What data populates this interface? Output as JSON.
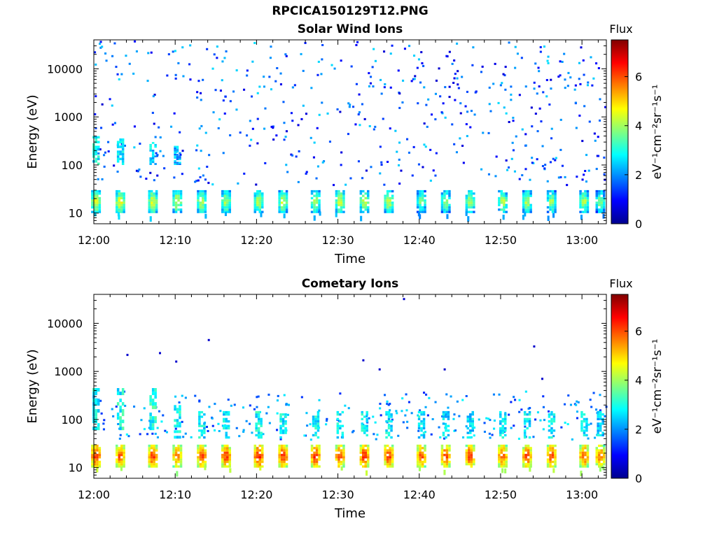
{
  "figure_title": "RPCICA150129T12.PNG",
  "chart_data": [
    {
      "type": "heatmap",
      "title": "Solar Wind Ions",
      "xlabel": "Time",
      "ylabel": "Energy (eV)",
      "x_ticks": [
        "12:00",
        "12:10",
        "12:20",
        "12:30",
        "12:40",
        "12:50",
        "13:00"
      ],
      "xlim": [
        "12:00",
        "13:03"
      ],
      "y_scale": "log",
      "y_ticks": [
        10,
        100,
        1000,
        10000
      ],
      "ylim": [
        6,
        40000
      ],
      "colorbar": {
        "title": "Flux",
        "label": "eV⁻¹cm⁻²sr⁻¹s⁻¹",
        "ticks": [
          0,
          2,
          4,
          6
        ],
        "range": [
          0,
          7.5
        ],
        "colormap": "jet"
      },
      "bursts": [
        {
          "time": "12:00",
          "low_band_energy": [
            10,
            30
          ],
          "low_band_flux": 4.5,
          "mid_band_energy": [
            100,
            400
          ],
          "mid_band_flux": 2.8
        },
        {
          "time": "12:03",
          "low_band_energy": [
            10,
            30
          ],
          "low_band_flux": 4.6,
          "mid_band_energy": [
            100,
            400
          ],
          "mid_band_flux": 2.6
        },
        {
          "time": "12:07",
          "low_band_energy": [
            10,
            30
          ],
          "low_band_flux": 4.5,
          "mid_band_energy": [
            100,
            300
          ],
          "mid_band_flux": 2.5
        },
        {
          "time": "12:10",
          "low_band_energy": [
            10,
            30
          ],
          "low_band_flux": 4.4,
          "mid_band_energy": [
            100,
            250
          ],
          "mid_band_flux": 2.2
        },
        {
          "time": "12:13",
          "low_band_energy": [
            10,
            30
          ],
          "low_band_flux": 4.3
        },
        {
          "time": "12:16",
          "low_band_energy": [
            10,
            30
          ],
          "low_band_flux": 4.2
        },
        {
          "time": "12:20",
          "low_band_energy": [
            10,
            30
          ],
          "low_band_flux": 4.2
        },
        {
          "time": "12:23",
          "low_band_energy": [
            10,
            30
          ],
          "low_band_flux": 4.3
        },
        {
          "time": "12:27",
          "low_band_energy": [
            10,
            30
          ],
          "low_band_flux": 4.2
        },
        {
          "time": "12:30",
          "low_band_energy": [
            10,
            30
          ],
          "low_band_flux": 4.4
        },
        {
          "time": "12:33",
          "low_band_energy": [
            10,
            30
          ],
          "low_band_flux": 4.2
        },
        {
          "time": "12:36",
          "low_band_energy": [
            10,
            30
          ],
          "low_band_flux": 4.3
        },
        {
          "time": "12:40",
          "low_band_energy": [
            10,
            30
          ],
          "low_band_flux": 3.9
        },
        {
          "time": "12:43",
          "low_band_energy": [
            10,
            30
          ],
          "low_band_flux": 4.0
        },
        {
          "time": "12:46",
          "low_band_energy": [
            10,
            30
          ],
          "low_band_flux": 4.1
        },
        {
          "time": "12:50",
          "low_band_energy": [
            10,
            30
          ],
          "low_band_flux": 4.2
        },
        {
          "time": "12:53",
          "low_band_energy": [
            10,
            30
          ],
          "low_band_flux": 4.2
        },
        {
          "time": "12:56",
          "low_band_energy": [
            10,
            30
          ],
          "low_band_flux": 4.0
        },
        {
          "time": "13:00",
          "low_band_energy": [
            10,
            30
          ],
          "low_band_flux": 4.1
        },
        {
          "time": "13:02",
          "low_band_energy": [
            10,
            30
          ],
          "low_band_flux": 3.8
        }
      ],
      "background": {
        "energy_range": [
          40,
          40000
        ],
        "flux_range": [
          0.6,
          2.6
        ],
        "description": "scattered sparse pixels"
      }
    },
    {
      "type": "heatmap",
      "title": "Cometary Ions",
      "xlabel": "Time",
      "ylabel": "Energy (eV)",
      "x_ticks": [
        "12:00",
        "12:10",
        "12:20",
        "12:30",
        "12:40",
        "12:50",
        "13:00"
      ],
      "xlim": [
        "12:00",
        "13:03"
      ],
      "y_scale": "log",
      "y_ticks": [
        10,
        100,
        1000,
        10000
      ],
      "ylim": [
        6,
        40000
      ],
      "colorbar": {
        "title": "Flux",
        "label": "eV⁻¹cm⁻²sr⁻¹s⁻¹",
        "ticks": [
          0,
          2,
          4,
          6
        ],
        "range": [
          0,
          7.5
        ],
        "colormap": "jet"
      },
      "bursts": [
        {
          "time": "12:00",
          "low_band_energy": [
            10,
            30
          ],
          "low_band_flux": 6.3,
          "mid_band_energy": [
            60,
            450
          ],
          "mid_band_flux": 2.8
        },
        {
          "time": "12:03",
          "low_band_energy": [
            10,
            30
          ],
          "low_band_flux": 6.0,
          "mid_band_energy": [
            60,
            450
          ],
          "mid_band_flux": 2.9
        },
        {
          "time": "12:07",
          "low_band_energy": [
            10,
            30
          ],
          "low_band_flux": 6.2,
          "mid_band_energy": [
            60,
            450
          ],
          "mid_band_flux": 3.0
        },
        {
          "time": "12:10",
          "low_band_energy": [
            10,
            30
          ],
          "low_band_flux": 5.8,
          "mid_band_energy": [
            40,
            200
          ],
          "mid_band_flux": 2.8
        },
        {
          "time": "12:13",
          "low_band_energy": [
            10,
            30
          ],
          "low_band_flux": 6.1,
          "mid_band_energy": [
            40,
            150
          ],
          "mid_band_flux": 2.7
        },
        {
          "time": "12:16",
          "low_band_energy": [
            10,
            30
          ],
          "low_band_flux": 6.2,
          "mid_band_energy": [
            40,
            150
          ],
          "mid_band_flux": 2.7
        },
        {
          "time": "12:20",
          "low_band_energy": [
            10,
            30
          ],
          "low_band_flux": 6.4,
          "mid_band_energy": [
            40,
            150
          ],
          "mid_band_flux": 2.8
        },
        {
          "time": "12:23",
          "low_band_energy": [
            10,
            30
          ],
          "low_band_flux": 6.2,
          "mid_band_energy": [
            40,
            150
          ],
          "mid_band_flux": 2.7
        },
        {
          "time": "12:27",
          "low_band_energy": [
            10,
            30
          ],
          "low_band_flux": 6.3,
          "mid_band_energy": [
            40,
            150
          ],
          "mid_band_flux": 2.8
        },
        {
          "time": "12:30",
          "low_band_energy": [
            10,
            30
          ],
          "low_band_flux": 6.1,
          "mid_band_energy": [
            40,
            150
          ],
          "mid_band_flux": 2.7
        },
        {
          "time": "12:33",
          "low_band_energy": [
            10,
            30
          ],
          "low_band_flux": 6.3,
          "mid_band_energy": [
            40,
            150
          ],
          "mid_band_flux": 2.8
        },
        {
          "time": "12:36",
          "low_band_energy": [
            10,
            30
          ],
          "low_band_flux": 6.2,
          "mid_band_energy": [
            40,
            150
          ],
          "mid_band_flux": 2.7
        },
        {
          "time": "12:40",
          "low_band_energy": [
            10,
            30
          ],
          "low_band_flux": 6.0,
          "mid_band_energy": [
            40,
            150
          ],
          "mid_band_flux": 2.7
        },
        {
          "time": "12:43",
          "low_band_energy": [
            10,
            30
          ],
          "low_band_flux": 6.1,
          "mid_band_energy": [
            40,
            150
          ],
          "mid_band_flux": 2.6
        },
        {
          "time": "12:46",
          "low_band_energy": [
            10,
            30
          ],
          "low_band_flux": 6.2,
          "mid_band_energy": [
            40,
            150
          ],
          "mid_band_flux": 2.6
        },
        {
          "time": "12:50",
          "low_band_energy": [
            10,
            30
          ],
          "low_band_flux": 6.0,
          "mid_band_energy": [
            40,
            150
          ],
          "mid_band_flux": 2.7
        },
        {
          "time": "12:53",
          "low_band_energy": [
            10,
            30
          ],
          "low_band_flux": 6.1,
          "mid_band_energy": [
            40,
            150
          ],
          "mid_band_flux": 2.7
        },
        {
          "time": "12:56",
          "low_band_energy": [
            10,
            30
          ],
          "low_band_flux": 6.2,
          "mid_band_energy": [
            40,
            150
          ],
          "mid_band_flux": 2.7
        },
        {
          "time": "13:00",
          "low_band_energy": [
            10,
            30
          ],
          "low_band_flux": 6.0,
          "mid_band_energy": [
            40,
            150
          ],
          "mid_band_flux": 2.6
        },
        {
          "time": "13:02",
          "low_band_energy": [
            10,
            30
          ],
          "low_band_flux": 5.9,
          "mid_band_energy": [
            40,
            150
          ],
          "mid_band_flux": 2.6
        }
      ],
      "background": {
        "energy_range": [
          40,
          400
        ],
        "flux_range": [
          1.2,
          2.8
        ],
        "description": "scattered pixels"
      },
      "isolated_points": [
        {
          "time": "12:04",
          "energy": 2200
        },
        {
          "time": "12:08",
          "energy": 2400
        },
        {
          "time": "12:10",
          "energy": 1600
        },
        {
          "time": "12:14",
          "energy": 4500
        },
        {
          "time": "12:33",
          "energy": 1700
        },
        {
          "time": "12:35",
          "energy": 1100
        },
        {
          "time": "12:38",
          "energy": 32000
        },
        {
          "time": "12:43",
          "energy": 1100
        },
        {
          "time": "12:54",
          "energy": 3300
        },
        {
          "time": "12:55",
          "energy": 700
        }
      ]
    }
  ]
}
